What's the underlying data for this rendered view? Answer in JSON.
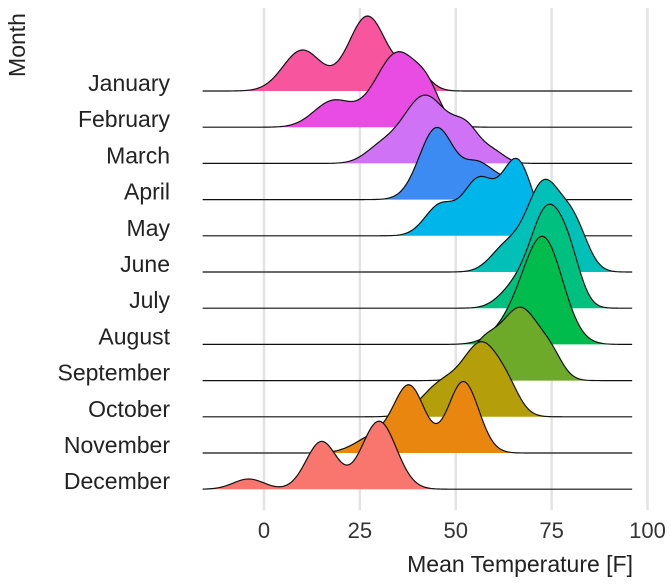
{
  "chart_data": {
    "type": "ridgeline",
    "xlabel": "Mean Temperature [F]",
    "ylabel": "Month",
    "xlim": [
      -16,
      97
    ],
    "xticks": [
      0,
      25,
      50,
      75,
      100
    ],
    "grid": "vertical",
    "legend": "none",
    "series": [
      {
        "name": "January",
        "color": "#F8559F",
        "start": -16,
        "end": 96,
        "peaks": [
          {
            "x": 10,
            "h": 0.6,
            "w": 5
          },
          {
            "x": 27,
            "h": 1.1,
            "w": 5
          },
          {
            "x": 39,
            "h": 0.35,
            "w": 3.5
          }
        ]
      },
      {
        "name": "February",
        "color": "#E94CE3",
        "start": -16,
        "end": 96,
        "peaks": [
          {
            "x": 18,
            "h": 0.38,
            "w": 5
          },
          {
            "x": 35,
            "h": 1.1,
            "w": 6
          },
          {
            "x": 43,
            "h": 0.28,
            "w": 3
          }
        ]
      },
      {
        "name": "March",
        "color": "#CF72F5",
        "start": -16,
        "end": 96,
        "peaks": [
          {
            "x": 30,
            "h": 0.18,
            "w": 4
          },
          {
            "x": 42,
            "h": 1.0,
            "w": 6
          },
          {
            "x": 53,
            "h": 0.42,
            "w": 3.5
          },
          {
            "x": 60,
            "h": 0.15,
            "w": 3
          }
        ]
      },
      {
        "name": "April",
        "color": "#3C8BF2",
        "start": -16,
        "end": 96,
        "peaks": [
          {
            "x": 45,
            "h": 1.05,
            "w": 4.5
          },
          {
            "x": 56,
            "h": 0.5,
            "w": 4
          },
          {
            "x": 63,
            "h": 0.2,
            "w": 3
          }
        ]
      },
      {
        "name": "May",
        "color": "#00B5EA",
        "start": -16,
        "end": 96,
        "peaks": [
          {
            "x": 46,
            "h": 0.45,
            "w": 4
          },
          {
            "x": 56,
            "h": 0.8,
            "w": 4
          },
          {
            "x": 66,
            "h": 1.1,
            "w": 4
          }
        ]
      },
      {
        "name": "June",
        "color": "#00C0B7",
        "start": -16,
        "end": 96,
        "peaks": [
          {
            "x": 63,
            "h": 0.35,
            "w": 4
          },
          {
            "x": 73,
            "h": 1.3,
            "w": 4.5
          },
          {
            "x": 81,
            "h": 0.6,
            "w": 3.5
          }
        ]
      },
      {
        "name": "July",
        "color": "#00C07F",
        "start": -16,
        "end": 96,
        "peaks": [
          {
            "x": 65,
            "h": 0.25,
            "w": 4
          },
          {
            "x": 74,
            "h": 1.45,
            "w": 4.5
          },
          {
            "x": 80,
            "h": 0.4,
            "w": 3
          }
        ]
      },
      {
        "name": "August",
        "color": "#00BC4C",
        "start": -16,
        "end": 96,
        "peaks": [
          {
            "x": 65,
            "h": 0.3,
            "w": 5
          },
          {
            "x": 73,
            "h": 1.5,
            "w": 5
          }
        ]
      },
      {
        "name": "September",
        "color": "#6DAA29",
        "start": -16,
        "end": 96,
        "peaks": [
          {
            "x": 57,
            "h": 0.5,
            "w": 4
          },
          {
            "x": 67,
            "h": 1.05,
            "w": 5
          },
          {
            "x": 75,
            "h": 0.25,
            "w": 3
          }
        ]
      },
      {
        "name": "October",
        "color": "#B49F0A",
        "start": -16,
        "end": 96,
        "peaks": [
          {
            "x": 46,
            "h": 0.45,
            "w": 5
          },
          {
            "x": 57,
            "h": 1.05,
            "w": 5
          },
          {
            "x": 64,
            "h": 0.2,
            "w": 3
          }
        ]
      },
      {
        "name": "November",
        "color": "#E88610",
        "start": -16,
        "end": 96,
        "peaks": [
          {
            "x": 29,
            "h": 0.25,
            "w": 5
          },
          {
            "x": 38,
            "h": 0.95,
            "w": 4
          },
          {
            "x": 52,
            "h": 1.05,
            "w": 4
          }
        ]
      },
      {
        "name": "December",
        "color": "#F8766D",
        "start": -16,
        "end": 96,
        "peaks": [
          {
            "x": -4,
            "h": 0.15,
            "w": 4
          },
          {
            "x": 15,
            "h": 0.7,
            "w": 4
          },
          {
            "x": 30,
            "h": 1.0,
            "w": 4.5
          }
        ]
      }
    ]
  }
}
